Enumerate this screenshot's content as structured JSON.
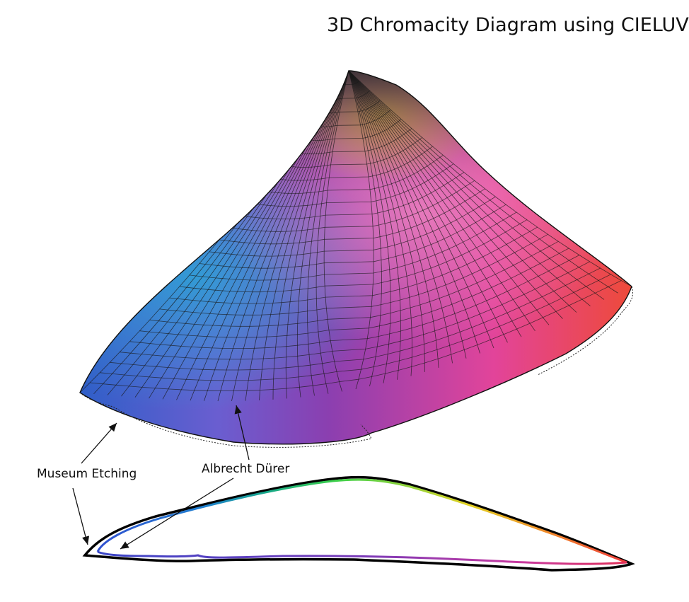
{
  "title": "3D Chromacity Diagram using CIELUV",
  "annotations": {
    "museum_etching": "Museum Etching",
    "albrecht_durer": "Albrecht Dürer"
  },
  "colors": {
    "background": "#ffffff",
    "mesh_line": "#1a1a1a",
    "blue": "#2f5fc8",
    "cyan": "#2aa5d6",
    "violet": "#6a49b6",
    "purple": "#8b3fb0",
    "magenta": "#e2449a",
    "pink": "#f47ab8",
    "red": "#ee4a3a",
    "yellow": "#e3d224",
    "green": "#3ccf4a",
    "teal": "#18a98a",
    "outline": "#000000"
  },
  "icons": [
    "arrow-museum-etching-top",
    "arrow-museum-etching-bottom",
    "arrow-albrecht-durer-top",
    "arrow-albrecht-durer-bottom"
  ]
}
